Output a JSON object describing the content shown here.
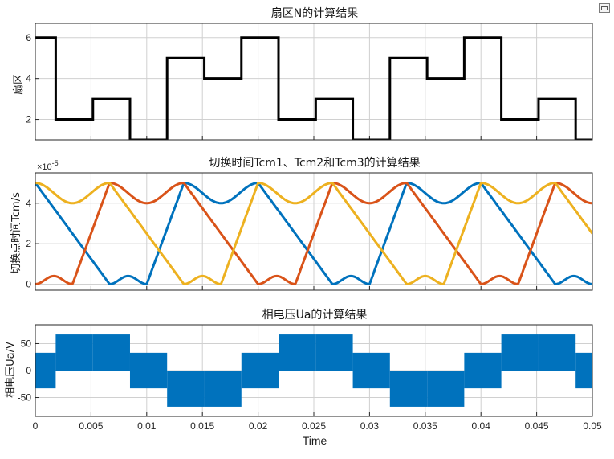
{
  "toolbar": {
    "icon": "figure-toolbar-icon"
  },
  "xlabel": "Time",
  "x_ticks": [
    0,
    0.005,
    0.01,
    0.015,
    0.02,
    0.025,
    0.03,
    0.035,
    0.04,
    0.045,
    0.05
  ],
  "x_tick_labels": [
    "0",
    "0.005",
    "0.01",
    "0.015",
    "0.02",
    "0.025",
    "0.03",
    "0.035",
    "0.04",
    "0.045",
    "0.05"
  ],
  "chart_data": [
    {
      "type": "line",
      "title": "扇区N的计算结果",
      "ylabel": "扇区",
      "xlim": [
        0,
        0.05
      ],
      "ylim": [
        1,
        6.7
      ],
      "yticks": [
        2,
        4,
        6
      ],
      "ytick_labels": [
        "2",
        "4",
        "6"
      ],
      "grid": true,
      "color": "#000000",
      "series": [
        {
          "step": true,
          "x": [
            0,
            0.00183,
            0.00517,
            0.0085,
            0.01183,
            0.01517,
            0.0185,
            0.02183,
            0.02517,
            0.0285,
            0.03183,
            0.03517,
            0.0385,
            0.04183,
            0.04517,
            0.0485,
            0.05
          ],
          "y": [
            6,
            2,
            3,
            1,
            5,
            4,
            6,
            2,
            3,
            1,
            5,
            4,
            6,
            2,
            3,
            1,
            1
          ]
        }
      ]
    },
    {
      "type": "line",
      "title": "切换时间Tcm1、Tcm2和Tcm3的计算结果",
      "ylabel": "切换点时间Tcm/s",
      "exponent_label": "×10",
      "exponent_power": "-5",
      "xlim": [
        0,
        0.05
      ],
      "ylim": [
        -0.3,
        5.5
      ],
      "yticks": [
        0,
        2,
        4
      ],
      "ytick_labels": [
        "0",
        "2",
        "4"
      ],
      "grid": true,
      "series": [
        {
          "color": "#0072bd",
          "phase_deg": 0
        },
        {
          "color": "#d95319",
          "phase_deg": 120
        },
        {
          "color": "#edb120",
          "phase_deg": 240
        }
      ],
      "amplitude": 5,
      "frequency_hz": 50
    },
    {
      "type": "area",
      "title": "相电压Ua的计算结果",
      "ylabel": "相电压Ua/V",
      "xlim": [
        0,
        0.05
      ],
      "ylim": [
        -85,
        85
      ],
      "yticks": [
        -50,
        0,
        50
      ],
      "ytick_labels": [
        "-50",
        "0",
        "50"
      ],
      "grid": true,
      "color": "#0072bd",
      "band_sequence_x": [
        0,
        0.00183,
        0.00517,
        0.0085,
        0.01183,
        0.01517,
        0.0185,
        0.02183,
        0.02517,
        0.0285,
        0.03183,
        0.03517,
        0.0385,
        0.04183,
        0.04517,
        0.0485,
        0.05
      ],
      "band_high": [
        33,
        67,
        67,
        33,
        0,
        0,
        33,
        67,
        67,
        33,
        0,
        0,
        33,
        67,
        67,
        33,
        33
      ],
      "band_low": [
        -33,
        0,
        0,
        -33,
        -67,
        -67,
        -33,
        0,
        0,
        -33,
        -67,
        -67,
        -33,
        0,
        0,
        -33,
        -33
      ]
    }
  ]
}
